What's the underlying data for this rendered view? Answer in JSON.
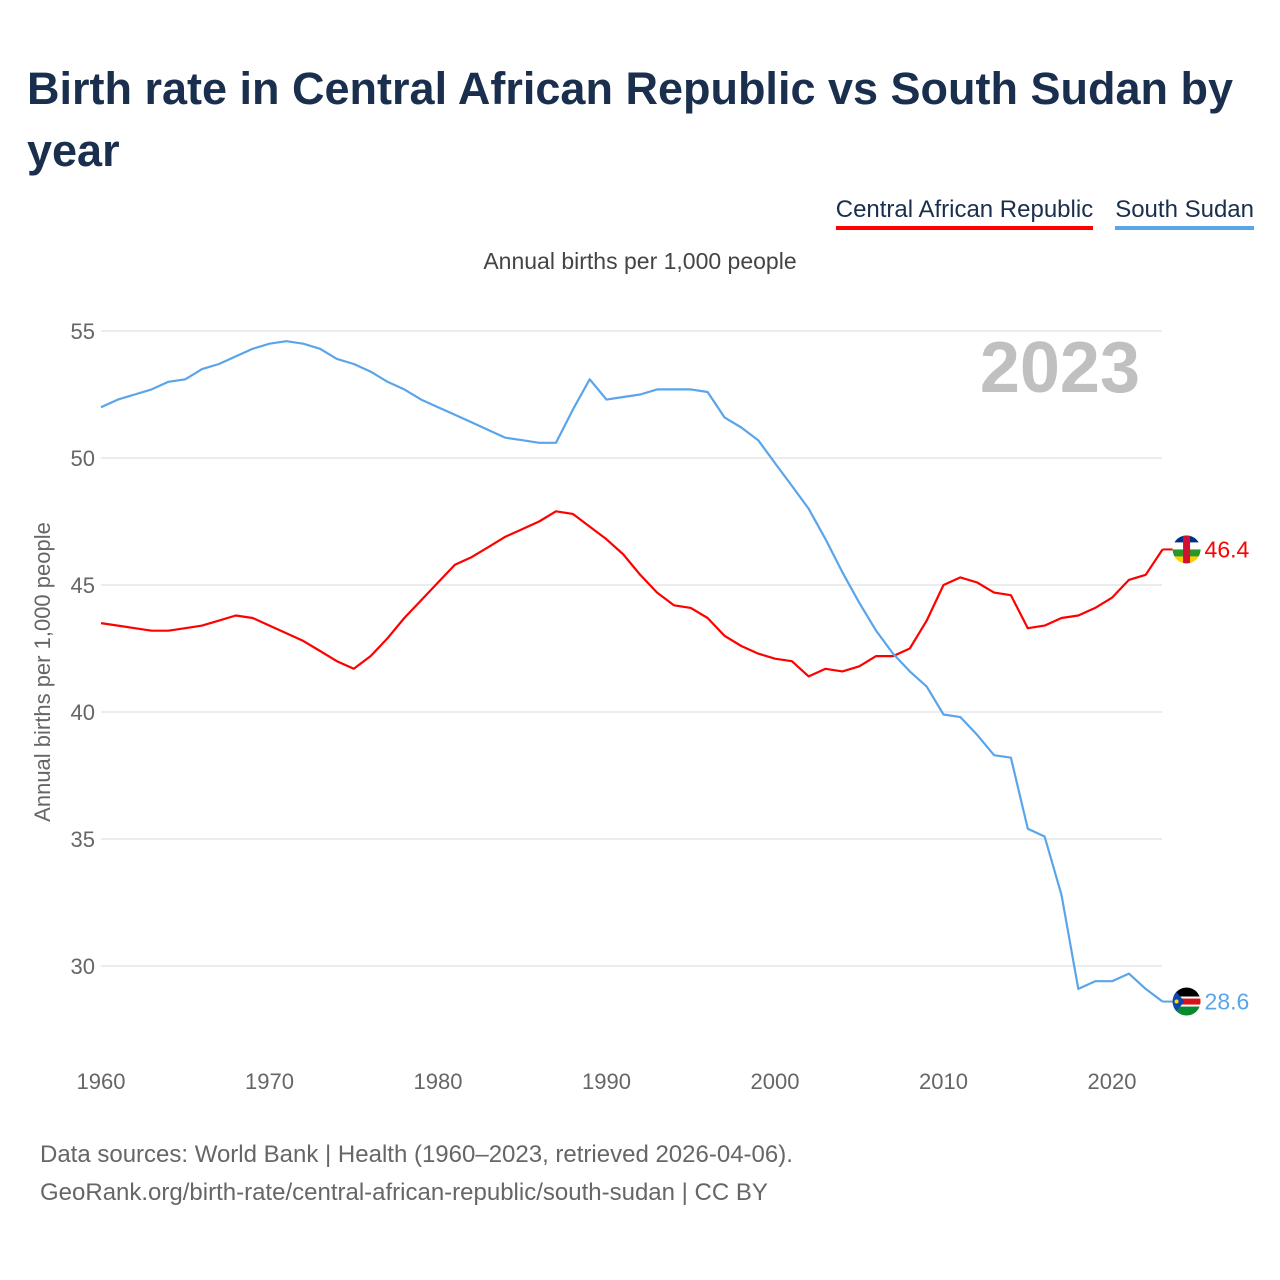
{
  "title": "Birth rate in Central African Republic vs South Sudan by year",
  "subtitle": "Annual births per 1,000 people",
  "footer": {
    "line1": "Data sources: World Bank | Health (1960–2023, retrieved 2026-04-06).",
    "line2": "GeoRank.org/birth-rate/central-african-republic/south-sudan | CC BY"
  },
  "chart_data": {
    "type": "line",
    "title": "Birth rate in Central African Republic vs South Sudan by year",
    "ylabel": "Annual births per 1,000 people",
    "xlabel": "",
    "year_watermark": "2023",
    "xlim": [
      1960,
      2023
    ],
    "ylim": [
      26.5,
      56.5
    ],
    "x_ticks": [
      "1960",
      "1970",
      "1980",
      "1990",
      "2000",
      "2010",
      "2020"
    ],
    "y_ticks": [
      "30",
      "35",
      "40",
      "45",
      "50",
      "55"
    ],
    "grid": true,
    "legend_position": "top-right",
    "x_start": 1960,
    "series": [
      {
        "name": "Central African Republic",
        "color": "#ff0000",
        "end_label": "46.4",
        "values": [
          43.5,
          43.4,
          43.3,
          43.2,
          43.2,
          43.3,
          43.4,
          43.6,
          43.8,
          43.7,
          43.4,
          43.1,
          42.8,
          42.4,
          42.0,
          41.7,
          42.2,
          42.9,
          43.7,
          44.4,
          45.1,
          45.8,
          46.1,
          46.5,
          46.9,
          47.2,
          47.5,
          47.9,
          47.8,
          47.3,
          46.8,
          46.2,
          45.4,
          44.7,
          44.2,
          44.1,
          43.7,
          43.0,
          42.6,
          42.3,
          42.1,
          42.0,
          41.4,
          41.7,
          41.6,
          41.8,
          42.2,
          42.2,
          42.5,
          43.6,
          45.0,
          45.3,
          45.1,
          44.7,
          44.6,
          43.3,
          43.4,
          43.7,
          43.8,
          44.1,
          44.5,
          45.2,
          45.4,
          46.4
        ]
      },
      {
        "name": "South Sudan",
        "color": "#5aa5ea",
        "end_label": "28.6",
        "values": [
          52.0,
          52.3,
          52.5,
          52.7,
          53.0,
          53.1,
          53.5,
          53.7,
          54.0,
          54.3,
          54.5,
          54.6,
          54.5,
          54.3,
          53.9,
          53.7,
          53.4,
          53.0,
          52.7,
          52.3,
          52.0,
          51.7,
          51.4,
          51.1,
          50.8,
          50.7,
          50.6,
          50.6,
          51.9,
          53.1,
          52.3,
          52.4,
          52.5,
          52.7,
          52.7,
          52.7,
          52.6,
          51.6,
          51.2,
          50.7,
          49.8,
          48.9,
          48.0,
          46.8,
          45.5,
          44.3,
          43.2,
          42.3,
          41.6,
          41.0,
          39.9,
          39.8,
          39.1,
          38.3,
          38.2,
          35.4,
          35.1,
          32.8,
          29.1,
          29.4,
          29.4,
          29.7,
          29.1,
          28.6
        ]
      }
    ]
  }
}
